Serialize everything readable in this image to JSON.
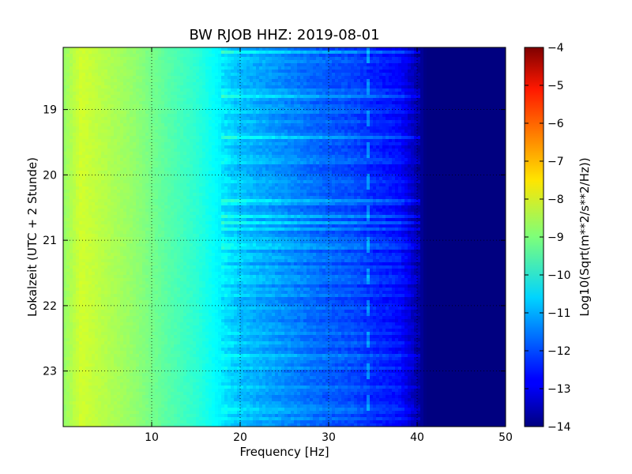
{
  "chart_data": {
    "type": "heatmap",
    "title": "BW RJOB HHZ: 2019-08-01",
    "xlabel": "Frequency [Hz]",
    "ylabel": "Lokalzeit (UTC + 2 Stunde)",
    "xlim": [
      0,
      50
    ],
    "ylim": [
      18.05,
      23.85
    ],
    "x_ticks": [
      10,
      20,
      30,
      40,
      50
    ],
    "y_ticks": [
      19,
      20,
      21,
      22,
      23
    ],
    "grid": true,
    "colormap": "jet",
    "colorbar": {
      "label": "Log10(Sqrt(m**2/s**2/Hz))",
      "min": -14,
      "max": -4,
      "ticks": [
        -4,
        -5,
        -6,
        -7,
        -8,
        -9,
        -10,
        -11,
        -12,
        -13,
        -14
      ]
    },
    "spectrum_profile": {
      "frequency_hz": [
        0,
        2,
        5,
        8,
        10,
        12,
        15,
        18,
        20,
        22,
        25,
        28,
        30,
        33,
        35,
        38,
        39,
        40,
        41,
        45,
        50
      ],
      "log_psd": [
        -8.8,
        -8.2,
        -8.5,
        -8.8,
        -9.1,
        -9.4,
        -9.8,
        -10.4,
        -10.8,
        -11.0,
        -11.3,
        -11.6,
        -11.8,
        -12.0,
        -12.3,
        -12.6,
        -13.0,
        -13.5,
        -14.0,
        -14.0,
        -14.0
      ]
    },
    "tonal_line_hz": 34.5
  }
}
